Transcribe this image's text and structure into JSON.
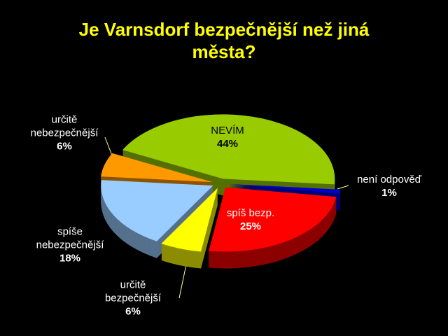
{
  "chart_data": {
    "type": "pie",
    "title": "Je Varnsdorf bezpečnější než jiná města?",
    "categories": [
      "NEVÍM",
      "není odpověď",
      "spíš bezp.",
      "určitě bezpečnější",
      "spíše nebezpečnější",
      "určitě nebezpečnější"
    ],
    "values": [
      44,
      1,
      25,
      6,
      18,
      6
    ],
    "value_labels": [
      "44%",
      "1%",
      "25%",
      "6%",
      "18%",
      "6%"
    ],
    "colors": [
      "#99cc00",
      "#0000cc",
      "#ff0000",
      "#ffff00",
      "#99ccff",
      "#ff9900"
    ]
  }
}
